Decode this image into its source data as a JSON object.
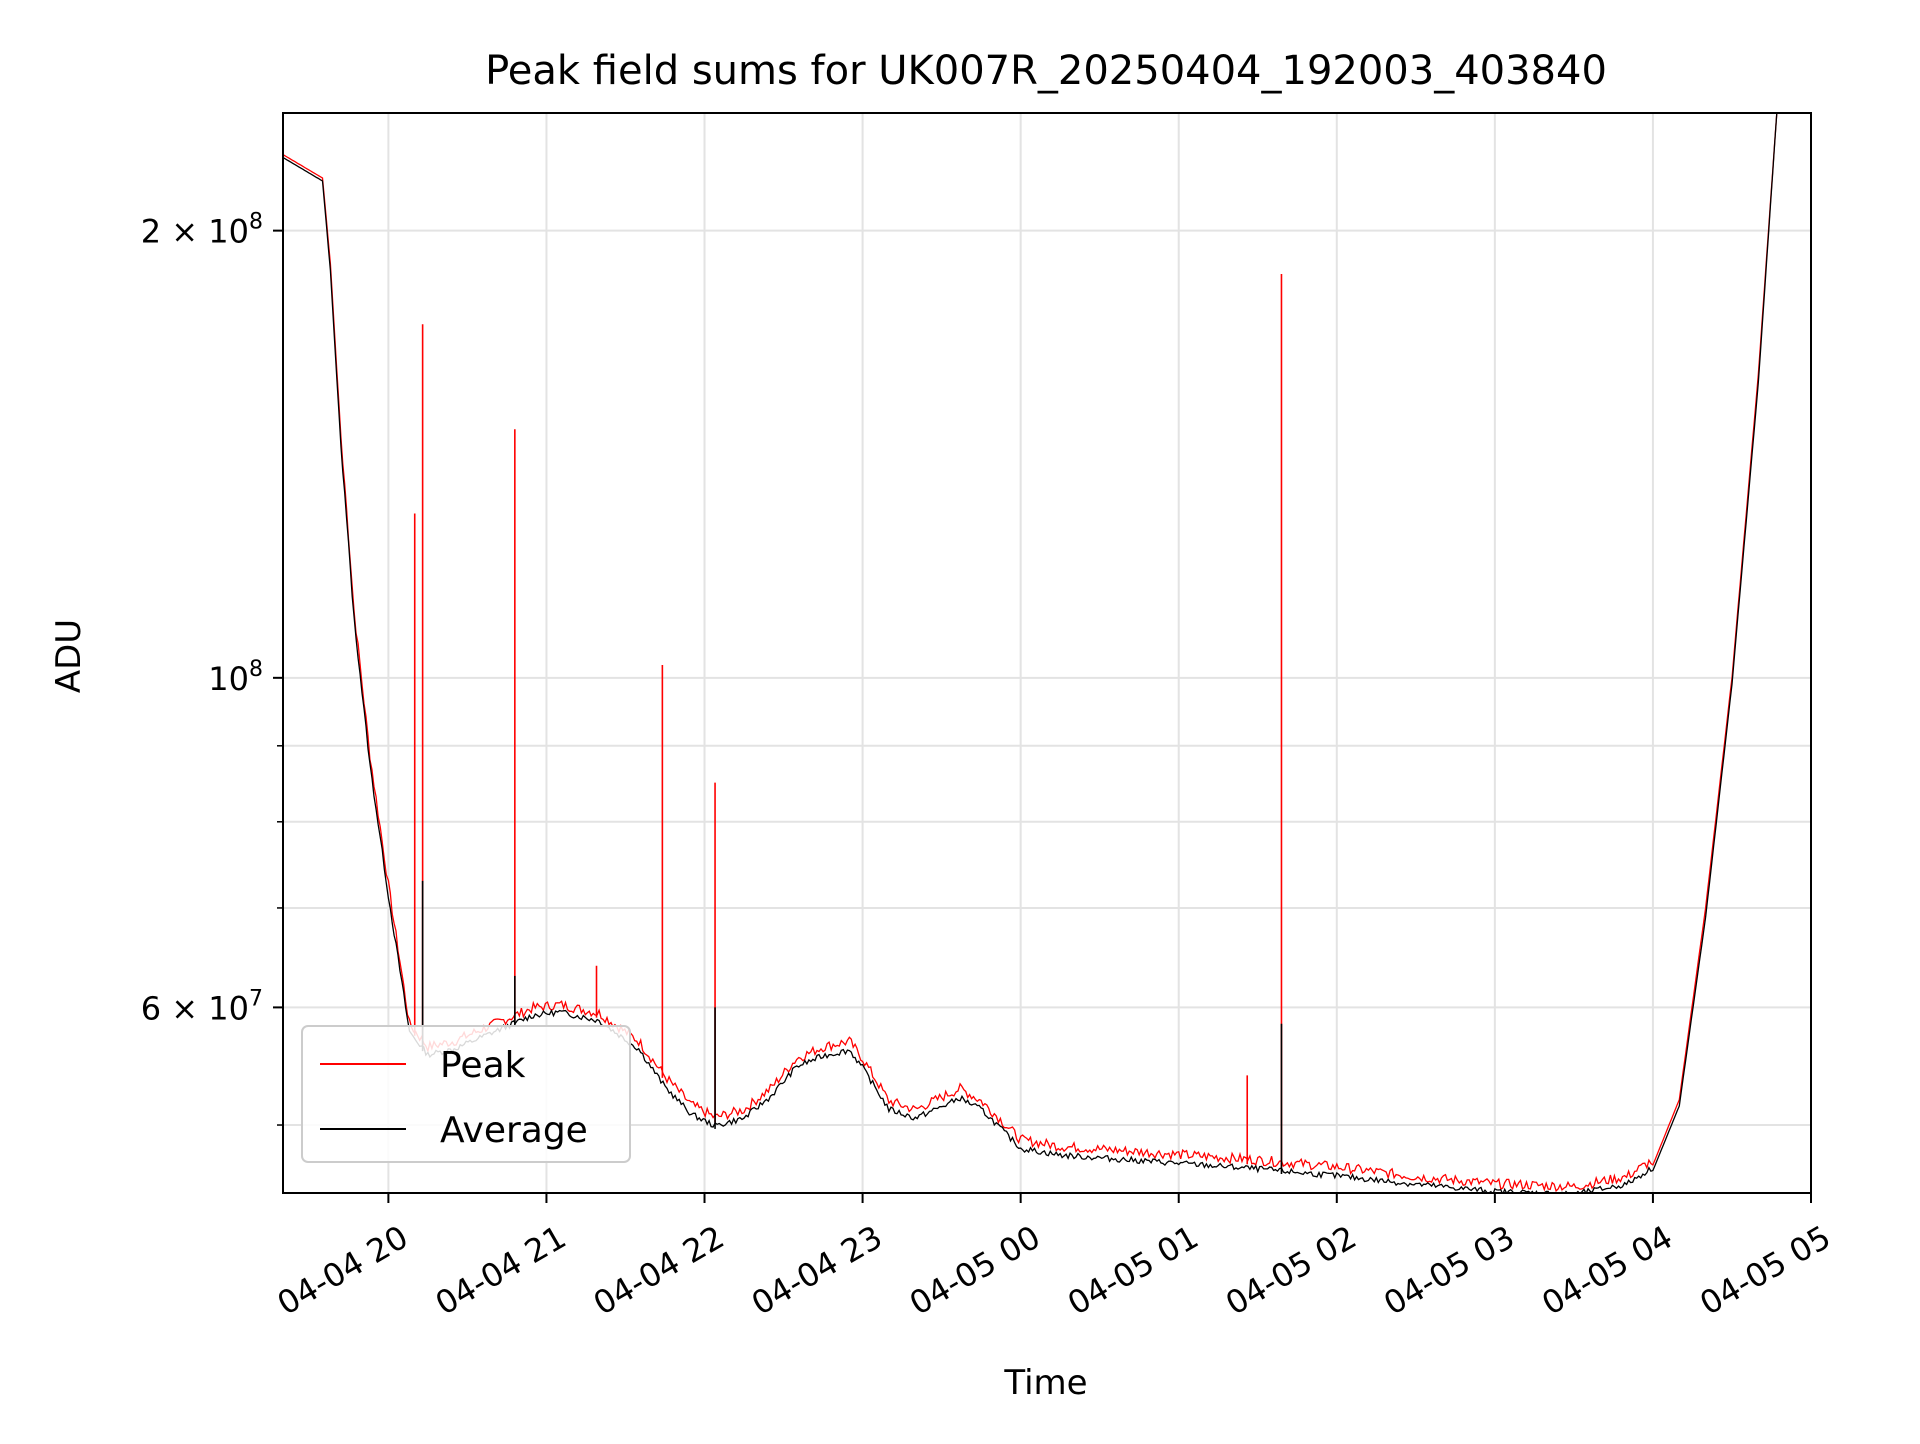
{
  "chart_data": {
    "type": "line",
    "title": "Peak field sums for UK007R_20250404_192003_403840",
    "xlabel": "Time",
    "ylabel": "ADU",
    "y_scale": "log",
    "ylim": [
      45000000,
      240000000
    ],
    "xlim": [
      "2025-04-04 19:20",
      "2025-04-05 05:00"
    ],
    "grid": true,
    "legend_position": "lower-left",
    "x_ticks": [
      {
        "x": "2025-04-04 20:00",
        "label": "04-04 20"
      },
      {
        "x": "2025-04-04 21:00",
        "label": "04-04 21"
      },
      {
        "x": "2025-04-04 22:00",
        "label": "04-04 22"
      },
      {
        "x": "2025-04-04 23:00",
        "label": "04-04 23"
      },
      {
        "x": "2025-04-05 00:00",
        "label": "04-05 00"
      },
      {
        "x": "2025-04-05 01:00",
        "label": "04-05 01"
      },
      {
        "x": "2025-04-05 02:00",
        "label": "04-05 02"
      },
      {
        "x": "2025-04-05 03:00",
        "label": "04-05 03"
      },
      {
        "x": "2025-04-05 04:00",
        "label": "04-05 04"
      },
      {
        "x": "2025-04-05 05:00",
        "label": "04-05 05"
      }
    ],
    "y_ticks_major": [
      {
        "value": 60000000,
        "base": "6 × 10",
        "exp": "7"
      },
      {
        "value": 100000000,
        "base": "10",
        "exp": "8"
      },
      {
        "value": 200000000,
        "base": "2 × 10",
        "exp": "8"
      }
    ],
    "y_ticks_minor": [
      50000000,
      70000000,
      80000000,
      90000000
    ],
    "series": [
      {
        "name": "Peak",
        "color": "#ff0000",
        "x": [
          "2025-04-04 19:20",
          "2025-04-04 19:35",
          "2025-04-04 19:38",
          "2025-04-04 19:42",
          "2025-04-04 19:47",
          "2025-04-04 19:53",
          "2025-04-04 20:00",
          "2025-04-04 20:08",
          "2025-04-04 20:15",
          "2025-04-04 20:25",
          "2025-04-04 20:40",
          "2025-04-04 20:55",
          "2025-04-04 21:05",
          "2025-04-04 21:20",
          "2025-04-04 21:35",
          "2025-04-04 21:45",
          "2025-04-04 21:55",
          "2025-04-04 22:04",
          "2025-04-04 22:15",
          "2025-04-04 22:25",
          "2025-04-04 22:35",
          "2025-04-04 22:45",
          "2025-04-04 22:55",
          "2025-04-04 23:00",
          "2025-04-04 23:10",
          "2025-04-04 23:20",
          "2025-04-04 23:30",
          "2025-04-04 23:37",
          "2025-04-04 23:45",
          "2025-04-04 23:50",
          "2025-04-05 00:00",
          "2025-04-05 00:15",
          "2025-04-05 00:30",
          "2025-04-05 01:00",
          "2025-04-05 01:30",
          "2025-04-05 02:00",
          "2025-04-05 02:30",
          "2025-04-05 03:00",
          "2025-04-05 03:30",
          "2025-04-05 03:50",
          "2025-04-05 04:00",
          "2025-04-05 04:10",
          "2025-04-05 04:20",
          "2025-04-05 04:30",
          "2025-04-05 04:40",
          "2025-04-05 04:47"
        ],
        "y": [
          225000000,
          217000000,
          190000000,
          145000000,
          110000000,
          88000000,
          72000000,
          58000000,
          56000000,
          56500000,
          58000000,
          59500000,
          59800000,
          59000000,
          56500000,
          53500000,
          51200000,
          50200000,
          50800000,
          52500000,
          55000000,
          56000000,
          56500000,
          55000000,
          51500000,
          50800000,
          51800000,
          52500000,
          51500000,
          50500000,
          48500000,
          48000000,
          47800000,
          47400000,
          47000000,
          46500000,
          45800000,
          45300000,
          45100000,
          45800000,
          47000000,
          52000000,
          70000000,
          100000000,
          160000000,
          240000000
        ]
      },
      {
        "name": "Average",
        "color": "#000000",
        "x": [
          "2025-04-04 19:20",
          "2025-04-04 19:35",
          "2025-04-04 19:38",
          "2025-04-04 19:42",
          "2025-04-04 19:47",
          "2025-04-04 19:53",
          "2025-04-04 20:00",
          "2025-04-04 20:08",
          "2025-04-04 20:15",
          "2025-04-04 20:25",
          "2025-04-04 20:40",
          "2025-04-04 20:55",
          "2025-04-04 21:05",
          "2025-04-04 21:20",
          "2025-04-04 21:35",
          "2025-04-04 21:45",
          "2025-04-04 21:55",
          "2025-04-04 22:04",
          "2025-04-04 22:15",
          "2025-04-04 22:25",
          "2025-04-04 22:35",
          "2025-04-04 22:45",
          "2025-04-04 22:55",
          "2025-04-04 23:00",
          "2025-04-04 23:10",
          "2025-04-04 23:20",
          "2025-04-04 23:30",
          "2025-04-04 23:37",
          "2025-04-04 23:45",
          "2025-04-04 23:50",
          "2025-04-05 00:00",
          "2025-04-05 00:15",
          "2025-04-05 00:30",
          "2025-04-05 01:00",
          "2025-04-05 01:30",
          "2025-04-05 02:00",
          "2025-04-05 02:30",
          "2025-04-05 03:00",
          "2025-04-05 03:30",
          "2025-04-05 03:50",
          "2025-04-05 04:00",
          "2025-04-05 04:10",
          "2025-04-05 04:20",
          "2025-04-05 04:30",
          "2025-04-05 04:40",
          "2025-04-05 04:47"
        ],
        "y": [
          224000000,
          216000000,
          188000000,
          143000000,
          109000000,
          87000000,
          71000000,
          57500000,
          55500000,
          56000000,
          57500000,
          59000000,
          59300000,
          58500000,
          56000000,
          52800000,
          50600000,
          49700000,
          50300000,
          52000000,
          54500000,
          55400000,
          55900000,
          54400000,
          51000000,
          50300000,
          51200000,
          51900000,
          51000000,
          50000000,
          48000000,
          47500000,
          47300000,
          46900000,
          46500000,
          46000000,
          45400000,
          44900000,
          44700000,
          45400000,
          46600000,
          51500000,
          69000000,
          99000000,
          158000000,
          240000000
        ]
      }
    ],
    "peak_spikes": [
      {
        "x": "2025-04-04 20:10",
        "y": 129000000
      },
      {
        "x": "2025-04-04 20:13",
        "y": 173000000
      },
      {
        "x": "2025-04-04 20:48",
        "y": 147000000
      },
      {
        "x": "2025-04-04 21:19",
        "y": 64000000
      },
      {
        "x": "2025-04-04 21:44",
        "y": 102000000
      },
      {
        "x": "2025-04-04 22:04",
        "y": 85000000
      },
      {
        "x": "2025-04-05 01:26",
        "y": 54000000
      },
      {
        "x": "2025-04-05 01:39",
        "y": 187000000
      }
    ],
    "average_spikes": [
      {
        "x": "2025-04-04 20:13",
        "y": 73000000
      },
      {
        "x": "2025-04-04 20:48",
        "y": 63000000
      },
      {
        "x": "2025-04-04 22:04",
        "y": 60000000
      },
      {
        "x": "2025-04-05 01:39",
        "y": 58500000
      }
    ],
    "legend": [
      {
        "label": "Peak",
        "color": "#ff0000"
      },
      {
        "label": "Average",
        "color": "#000000"
      }
    ]
  }
}
